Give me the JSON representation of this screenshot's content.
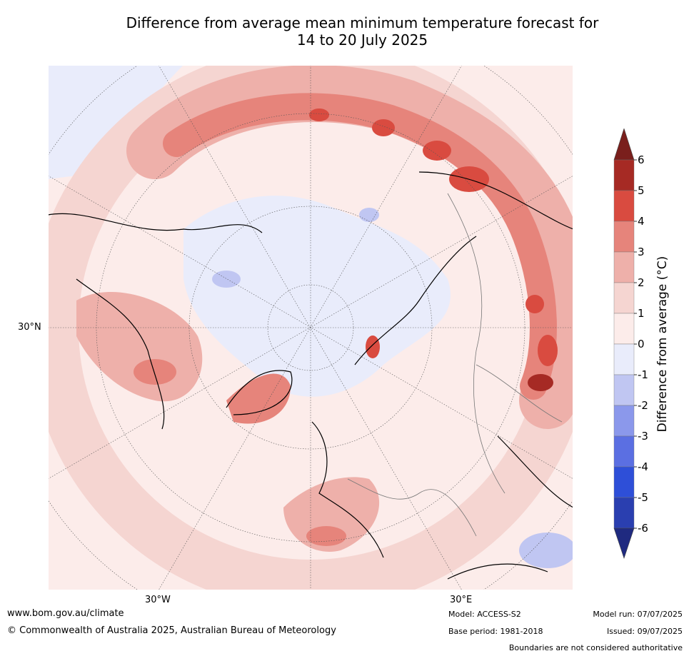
{
  "title_line1": "Difference from average mean minimum temperature forecast for",
  "title_line2": "14 to 20 July 2025",
  "map": {
    "projection": "north polar stereographic",
    "lon_labels": [
      "30°W",
      "30°E"
    ],
    "lat_labels": [
      "30°N"
    ]
  },
  "colorbar": {
    "label": "Difference from average (°C)",
    "ticks": [
      "6",
      "5",
      "4",
      "3",
      "2",
      "1",
      "0",
      "-1",
      "-2",
      "-3",
      "-4",
      "-5",
      "-6"
    ],
    "bins": [
      {
        "range": "5 to 6",
        "color": "#a62a24"
      },
      {
        "range": "4 to 5",
        "color": "#d94b40"
      },
      {
        "range": "3 to 4",
        "color": "#e6847b"
      },
      {
        "range": "2 to 3",
        "color": "#eeb0aa"
      },
      {
        "range": "1 to 2",
        "color": "#f5d5d1"
      },
      {
        "range": "0 to 1",
        "color": "#fcecea"
      },
      {
        "range": "-1 to 0",
        "color": "#e9ecfb"
      },
      {
        "range": "-2 to -1",
        "color": "#c0c6f2"
      },
      {
        "range": "-3 to -2",
        "color": "#8b98eb"
      },
      {
        "range": "-4 to -3",
        "color": "#5b6fe2"
      },
      {
        "range": "-5 to -4",
        "color": "#2e4fd8"
      },
      {
        "range": "-6 to -5",
        "color": "#2a3fb0"
      }
    ],
    "over_color": "#7a1f1c",
    "under_color": "#1f2a80"
  },
  "footer": {
    "url": "www.bom.gov.au/climate",
    "copyright": "© Commonwealth of Australia 2025, Australian Bureau of Meteorology",
    "model": "Model: ACCESS-S2",
    "base_period": "Base period: 1981-2018",
    "model_run": "Model run: 07/07/2025",
    "issued": "Issued: 09/07/2025",
    "disclaimer": "Boundaries are not considered authoritative"
  }
}
